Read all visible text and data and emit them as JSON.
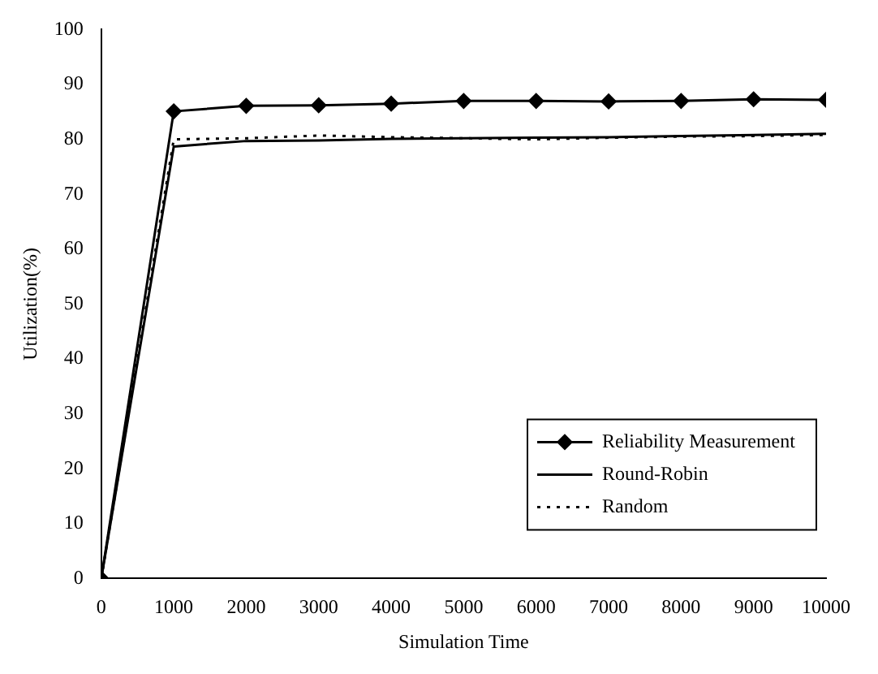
{
  "chart_data": {
    "type": "line",
    "xlabel": "Simulation Time",
    "ylabel": "Utilization(%)",
    "x": [
      0,
      1000,
      2000,
      3000,
      4000,
      5000,
      6000,
      7000,
      8000,
      9000,
      10000
    ],
    "series": [
      {
        "name": "Reliability Measurement",
        "color": "#000000",
        "marker": "diamond",
        "line_style": "solid",
        "values": [
          0,
          85.1,
          86.1,
          86.2,
          86.5,
          87,
          87,
          86.9,
          87,
          87.3,
          87.2
        ]
      },
      {
        "name": "Round-Robin",
        "color": "#000000",
        "marker": "none",
        "line_style": "solid",
        "values": [
          0,
          78.7,
          79.7,
          79.8,
          80.1,
          80.2,
          80.3,
          80.4,
          80.6,
          80.8,
          81
        ]
      },
      {
        "name": "Random",
        "color": "#000000",
        "marker": "none",
        "line_style": "dotted",
        "values": [
          0,
          80,
          80.2,
          80.7,
          80.4,
          80.2,
          80,
          80.3,
          80.5,
          80.6,
          80.8
        ]
      }
    ],
    "xlim": [
      0,
      10000
    ],
    "xticks": [
      0,
      1000,
      2000,
      3000,
      4000,
      5000,
      6000,
      7000,
      8000,
      9000,
      10000
    ],
    "ylim": [
      0,
      100
    ],
    "yticks": [
      0,
      10,
      20,
      30,
      40,
      50,
      60,
      70,
      80,
      90,
      100
    ],
    "grid": false,
    "legend": "bottom right"
  }
}
